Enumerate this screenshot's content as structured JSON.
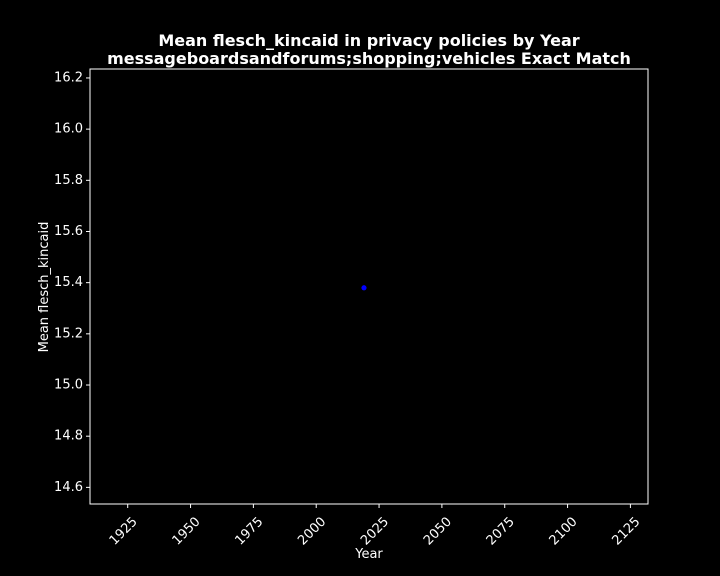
{
  "chart_data": {
    "type": "scatter",
    "title_line1": "Mean flesch_kincaid in privacy policies by Year",
    "title_line2": "messageboardsandforums;shopping;vehicles Exact Match",
    "xlabel": "Year",
    "ylabel": "Mean flesch_kincaid",
    "xlim": [
      1910,
      2132
    ],
    "ylim": [
      14.535,
      16.235
    ],
    "x_ticks": [
      1925,
      1950,
      1975,
      2000,
      2025,
      2050,
      2075,
      2100,
      2125
    ],
    "y_ticks": [
      14.6,
      14.8,
      15.0,
      15.2,
      15.4,
      15.6,
      15.8,
      16.0,
      16.2
    ],
    "series": [
      {
        "color": "#0000ff",
        "points": [
          {
            "x": 2019,
            "y": 15.38
          }
        ]
      }
    ],
    "background": "#000000",
    "foreground": "#ffffff",
    "grid": false
  }
}
